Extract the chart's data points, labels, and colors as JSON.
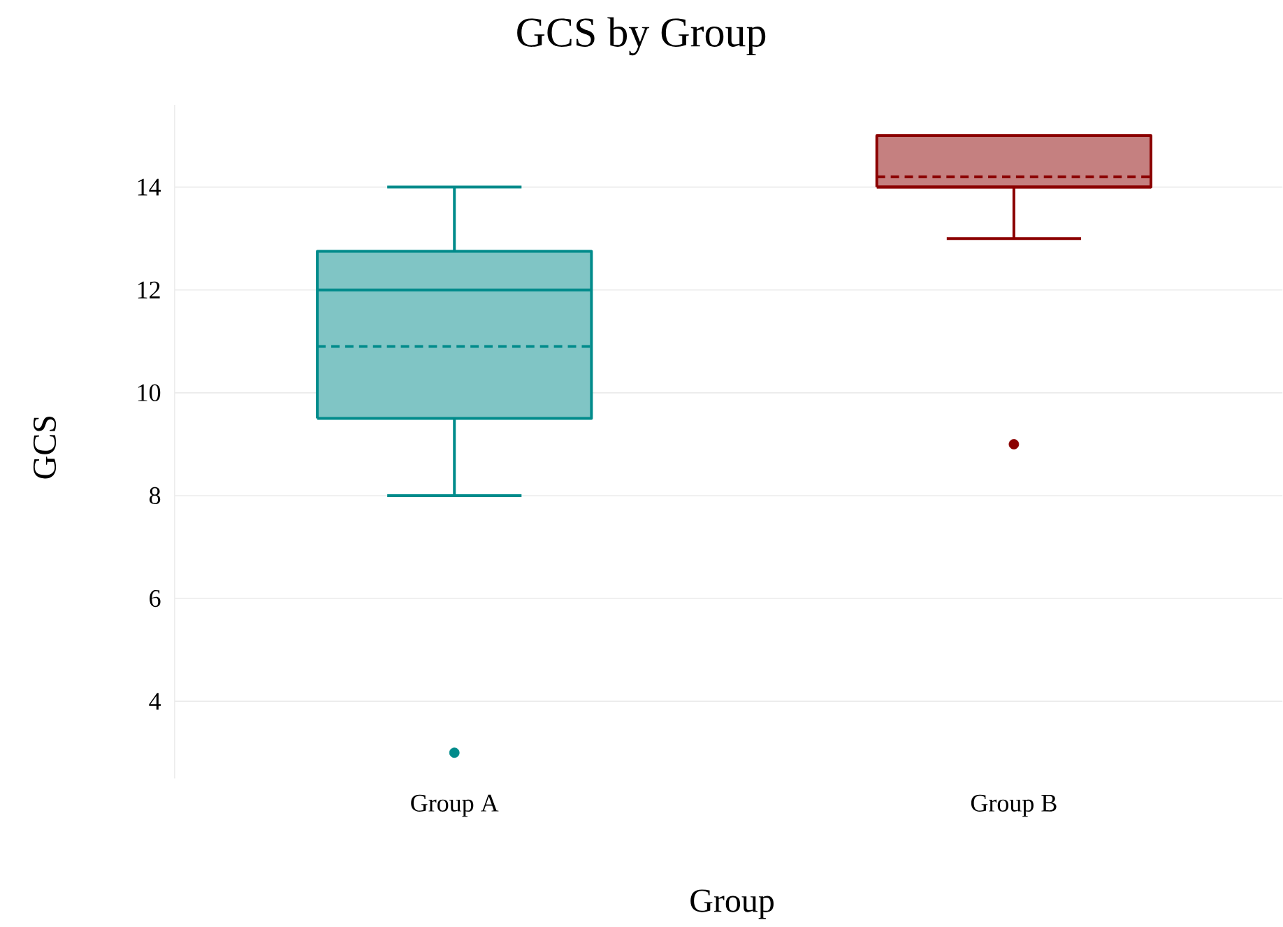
{
  "chart_data": {
    "type": "box",
    "title": "GCS by Group",
    "xlabel": "Group",
    "ylabel": "GCS",
    "categories": [
      "Group A",
      "Group B"
    ],
    "boxes": [
      {
        "low": 8,
        "q1": 9.5,
        "median": 12,
        "q3": 12.75,
        "high": 14,
        "mean": 10.9,
        "outliers": [
          3
        ]
      },
      {
        "low": 13,
        "q1": 14,
        "median": 14,
        "q3": 15,
        "high": 15,
        "mean": 14.2,
        "outliers": [
          9
        ]
      }
    ],
    "colors": [
      "#008b8b",
      "#8b0000"
    ],
    "ylim": [
      2.5,
      15.6
    ],
    "yticks": [
      4,
      6,
      8,
      10,
      12,
      14
    ],
    "grid": "y"
  }
}
